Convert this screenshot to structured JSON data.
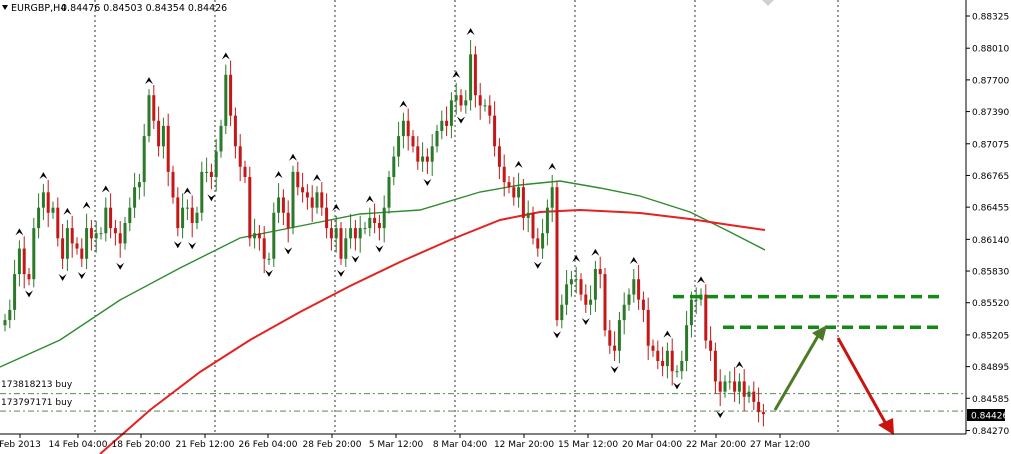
{
  "header": {
    "symbol": "EURGBP,H4",
    "ohlc": "0.84476 0.84503 0.84354 0.84426"
  },
  "chart_data": {
    "type": "candlestick",
    "symbol": "EURGBP,H4",
    "ylim": [
      0.8425,
      0.8834
    ],
    "yticks": [
      "0.88325",
      "0.88010",
      "0.87700",
      "0.87390",
      "0.87075",
      "0.86765",
      "0.86455",
      "0.86140",
      "0.85830",
      "0.85520",
      "0.85205",
      "0.84895",
      "0.84585",
      "0.84270"
    ],
    "current_price": "0.84426",
    "xticks": [
      "Feb 2013",
      "14 Feb 04:00",
      "18 Feb 20:00",
      "21 Feb 12:00",
      "26 Feb 04:00",
      "28 Feb 20:00",
      "5 Mar 12:00",
      "8 Mar 04:00",
      "12 Mar 20:00",
      "15 Mar 12:00",
      "20 Mar 04:00",
      "22 Mar 20:00",
      "27 Mar 12:00"
    ],
    "orders": [
      {
        "label": "173818213 buy",
        "price": 0.8463
      },
      {
        "label": "173797171 buy",
        "price": 0.8446
      }
    ],
    "close_series": [
      0.8535,
      0.8545,
      0.858,
      0.8605,
      0.858,
      0.8575,
      0.8625,
      0.8645,
      0.866,
      0.864,
      0.8645,
      0.8615,
      0.8595,
      0.8625,
      0.861,
      0.8605,
      0.8595,
      0.8625,
      0.8615,
      0.862,
      0.862,
      0.8645,
      0.8625,
      0.862,
      0.861,
      0.863,
      0.8645,
      0.8665,
      0.867,
      0.8715,
      0.8755,
      0.873,
      0.8705,
      0.8725,
      0.868,
      0.8655,
      0.8625,
      0.8645,
      0.8645,
      0.863,
      0.864,
      0.868,
      0.868,
      0.8675,
      0.87,
      0.8725,
      0.8775,
      0.8735,
      0.8705,
      0.8685,
      0.8675,
      0.8615,
      0.862,
      0.8615,
      0.8595,
      0.8595,
      0.864,
      0.8655,
      0.864,
      0.8625,
      0.868,
      0.8665,
      0.866,
      0.8655,
      0.8645,
      0.866,
      0.8645,
      0.8625,
      0.8615,
      0.8625,
      0.8595,
      0.8615,
      0.8625,
      0.8615,
      0.8625,
      0.8625,
      0.8635,
      0.863,
      0.8625,
      0.8645,
      0.8675,
      0.8695,
      0.8715,
      0.873,
      0.8715,
      0.8705,
      0.869,
      0.8695,
      0.869,
      0.8705,
      0.872,
      0.873,
      0.8725,
      0.875,
      0.8755,
      0.8745,
      0.875,
      0.8795,
      0.8755,
      0.8745,
      0.8745,
      0.8735,
      0.8705,
      0.8685,
      0.867,
      0.8665,
      0.8655,
      0.8665,
      0.8635,
      0.864,
      0.8615,
      0.8605,
      0.862,
      0.8645,
      0.8665,
      0.8535,
      0.855,
      0.857,
      0.8575,
      0.8575,
      0.856,
      0.855,
      0.8555,
      0.8585,
      0.858,
      0.8525,
      0.851,
      0.8505,
      0.8535,
      0.855,
      0.856,
      0.8575,
      0.8555,
      0.8545,
      0.851,
      0.8505,
      0.8495,
      0.849,
      0.8505,
      0.8485,
      0.8485,
      0.8495,
      0.853,
      0.8555,
      0.8555,
      0.856,
      0.8515,
      0.8505,
      0.8475,
      0.8465,
      0.8475,
      0.8475,
      0.8465,
      0.8475,
      0.846,
      0.8465,
      0.8455,
      0.8445,
      0.8443
    ],
    "indicators": [
      {
        "color": "#2e8b2e",
        "kind": "moving-average"
      },
      {
        "color": "#e32222",
        "kind": "moving-average"
      }
    ],
    "annotations": [
      {
        "kind": "dashed-level",
        "color": "#138a13",
        "price": 0.8558
      },
      {
        "kind": "dashed-level",
        "color": "#138a13",
        "price": 0.8528
      },
      {
        "kind": "arrow-up",
        "color": "#4d7a26"
      },
      {
        "kind": "arrow-down",
        "color": "#cc1111"
      }
    ],
    "colors": {
      "bull": "#2a7a2a",
      "bear": "#c41818",
      "grid": "#000000",
      "price_box": "#000000"
    }
  }
}
